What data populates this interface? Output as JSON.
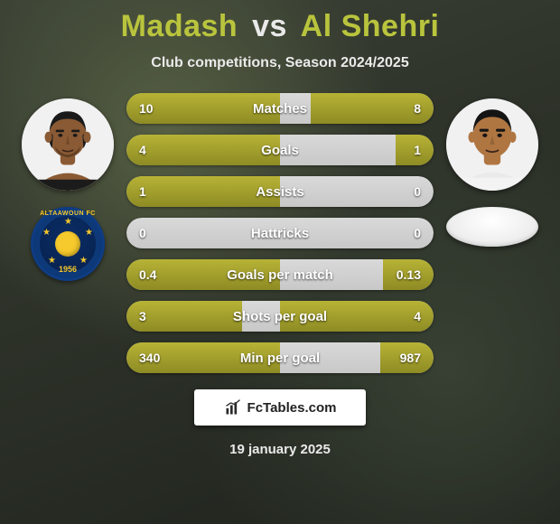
{
  "title": {
    "player1": "Madash",
    "vs": "vs",
    "player2": "Al Shehri"
  },
  "subtitle": "Club competitions, Season 2024/2025",
  "date": "19 january 2025",
  "footer": {
    "site": "FcTables.com"
  },
  "club_left": {
    "arc_text": "ALTAAWOUN FC",
    "year": "1956",
    "ring_color": "#0d3979",
    "bg_inner": "#082352",
    "accent": "#f6c92c"
  },
  "colors": {
    "bar_fill_p1": "#a6a22b",
    "bar_fill_p1_grad_top": "#b7b336",
    "bar_fill_p1_grad_bot": "#8e8b24",
    "bar_fill_p2": "#a6a22b",
    "bar_track": "#cfcfcf",
    "text": "#ffffff",
    "accent_title": "#b9c43d"
  },
  "player_left_skin": "#8a5a34",
  "player_right_skin": "#b07642",
  "stats": [
    {
      "label": "Matches",
      "left_text": "10",
      "right_text": "8",
      "left_pct": 100,
      "right_pct": 80
    },
    {
      "label": "Goals",
      "left_text": "4",
      "right_text": "1",
      "left_pct": 100,
      "right_pct": 25
    },
    {
      "label": "Assists",
      "left_text": "1",
      "right_text": "0",
      "left_pct": 100,
      "right_pct": 0
    },
    {
      "label": "Hattricks",
      "left_text": "0",
      "right_text": "0",
      "left_pct": 0,
      "right_pct": 0
    },
    {
      "label": "Goals per match",
      "left_text": "0.4",
      "right_text": "0.13",
      "left_pct": 100,
      "right_pct": 33
    },
    {
      "label": "Shots per goal",
      "left_text": "3",
      "right_text": "4",
      "left_pct": 75,
      "right_pct": 100
    },
    {
      "label": "Min per goal",
      "left_text": "340",
      "right_text": "987",
      "left_pct": 100,
      "right_pct": 35
    }
  ]
}
